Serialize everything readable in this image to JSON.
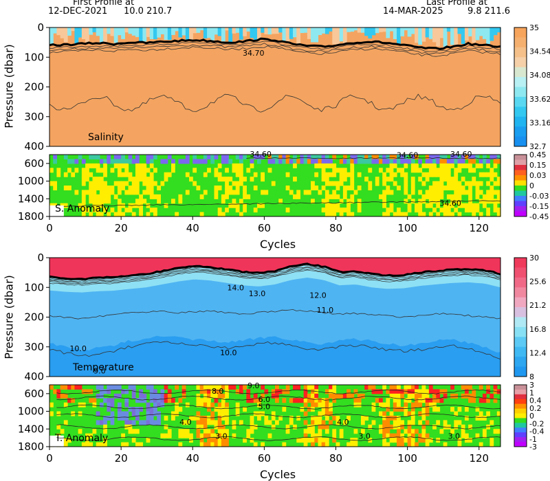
{
  "header": {
    "first_label": "First Profile at",
    "first_date": "12-DEC-2021",
    "first_pos": "10.0 210.7",
    "last_label": "Last Profile at",
    "last_date": "14-MAR-2025",
    "last_pos": "9.8 211.6"
  },
  "colors": {
    "orange": "#f4a460",
    "light_cyan": "#8ee8f0",
    "cyan": "#33c8f0",
    "blue": "#2a9ef0",
    "red": "#f0355a",
    "anom_green": "#33dd1f",
    "anom_yellow": "#ffee00"
  },
  "chart_data": [
    {
      "type": "heatmap",
      "title": "Salinity",
      "ylabel": "Pressure (dbar)",
      "ylim": [
        0,
        400
      ],
      "y_ticks": [
        "0",
        "100",
        "200",
        "300",
        "400"
      ],
      "colorbar": [
        "35",
        "34.54",
        "34.08",
        "33.62",
        "33.16",
        "32.7"
      ],
      "contour_labels": [
        "34.70"
      ],
      "mixed_layer_depth": [
        60,
        58,
        55,
        52,
        55,
        50,
        52,
        48,
        45,
        42,
        45,
        50,
        48,
        40,
        42,
        55,
        62,
        65,
        58,
        50,
        48,
        52,
        60,
        68,
        72,
        65,
        55,
        60,
        65
      ]
    },
    {
      "type": "heatmap",
      "title": "S. Anomaly",
      "ylim": [
        400,
        1800
      ],
      "y_ticks": [
        "600",
        "1000",
        "1400",
        "1800"
      ],
      "colorbar": [
        "0.45",
        "0.15",
        "0.03",
        "0",
        "-0.03",
        "-0.15",
        "-0.45"
      ],
      "contour_labels": [
        "34.60",
        "34.60",
        "34.60",
        "34.60"
      ]
    },
    {
      "type": "heatmap",
      "title": "Temperature",
      "ylabel": "Pressure (dbar)",
      "ylim": [
        0,
        400
      ],
      "y_ticks": [
        "0",
        "100",
        "200",
        "300",
        "400"
      ],
      "colorbar": [
        "30",
        "25.6",
        "21.2",
        "16.8",
        "12.4",
        "8"
      ],
      "contour_labels": [
        "14.0",
        "13.0",
        "12.0",
        "11.0",
        "10.0",
        "9.0"
      ],
      "mixed_layer_depth": [
        65,
        70,
        72,
        68,
        66,
        60,
        55,
        45,
        35,
        28,
        32,
        40,
        48,
        52,
        45,
        30,
        22,
        30,
        48,
        45,
        55,
        60,
        58,
        50,
        45,
        40,
        38,
        42,
        55
      ],
      "isotherm_11_depth": [
        195,
        200,
        205,
        198,
        190,
        185,
        182,
        178,
        185,
        182,
        178,
        185,
        190,
        185,
        180,
        175,
        180,
        185,
        190,
        188,
        192,
        195,
        200,
        195,
        190,
        188,
        195,
        200,
        205
      ],
      "isotherm_10_depth": [
        310,
        320,
        330,
        325,
        315,
        300,
        290,
        285,
        290,
        295,
        300,
        305,
        300,
        290,
        285,
        295,
        305,
        310,
        300,
        295,
        300,
        310,
        315,
        310,
        300,
        295,
        305,
        320,
        340
      ]
    },
    {
      "type": "heatmap",
      "title": "T. Anomaly",
      "xlabel": "Cycles",
      "ylim": [
        400,
        1800
      ],
      "y_ticks": [
        "600",
        "1000",
        "1400",
        "1800"
      ],
      "colorbar": [
        "3",
        "1",
        "0.4",
        "0.2",
        "0",
        "-0.2",
        "-0.4",
        "-1",
        "-3"
      ],
      "contour_labels": [
        "9.0",
        "8.0",
        "6.0",
        "5.0",
        "4.0",
        "4.0",
        "3.0",
        "3.0",
        "3.0"
      ]
    }
  ],
  "x_axis": {
    "xlabel": "Cycles",
    "xlim": [
      0,
      126
    ],
    "ticks": [
      "0",
      "20",
      "40",
      "60",
      "80",
      "100",
      "120"
    ]
  }
}
